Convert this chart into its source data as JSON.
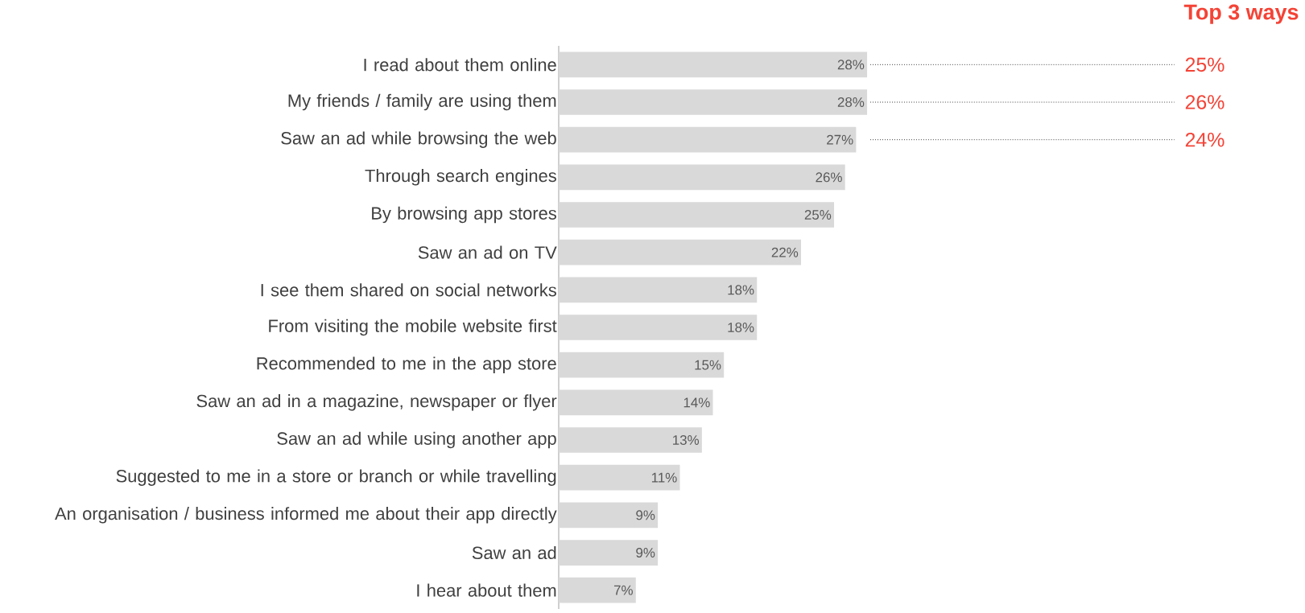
{
  "chart_data": {
    "type": "bar",
    "orientation": "horizontal",
    "color": "#d9d9d9",
    "categories": [
      "I read about them online",
      "My friends / family are using them",
      "Saw an ad while browsing the web",
      "Through search engines",
      "By browsing app stores",
      "Saw an ad on TV",
      "I see them shared on social networks",
      "From visiting the mobile website first",
      "Recommended to me in the app store",
      "Saw an ad in a magazine, newspaper or flyer",
      "Saw an ad while using another app",
      "Suggested to me in a store or branch or while travelling",
      "An organisation / business informed me about their app directly",
      "Saw an ad",
      "I hear about them"
    ],
    "values": [
      28,
      28,
      27,
      26,
      25,
      22,
      18,
      18,
      15,
      14,
      13,
      11,
      9,
      9,
      7
    ],
    "value_labels": [
      "28%",
      "28%",
      "27%",
      "26%",
      "25%",
      "22%",
      "18%",
      "18%",
      "15%",
      "14%",
      "13%",
      "11%",
      "9%",
      "9%",
      "7%"
    ],
    "annotations": [
      "Top 3 ways",
      "25%",
      "26%",
      "24%"
    ]
  }
}
